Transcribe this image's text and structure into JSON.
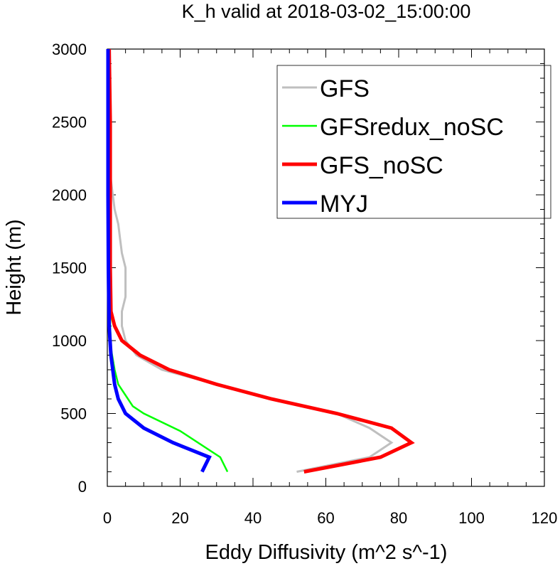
{
  "chart_data": {
    "type": "line",
    "title": "K_h valid at 2018-03-02_15:00:00",
    "xlabel": "Eddy Diffusivity (m^2 s^-1)",
    "ylabel": "Height (m)",
    "xlim": [
      0,
      120
    ],
    "ylim": [
      0,
      3000
    ],
    "xticks": [
      "0",
      "20",
      "40",
      "60",
      "80",
      "100",
      "120"
    ],
    "yticks": [
      "0",
      "500",
      "1000",
      "1500",
      "2000",
      "2500",
      "3000"
    ],
    "grid": false,
    "legend_position": "top-right",
    "series": [
      {
        "name": "GFS",
        "color": "#bfbfbf",
        "points": [
          [
            52,
            100
          ],
          [
            72,
            200
          ],
          [
            78,
            300
          ],
          [
            72,
            400
          ],
          [
            63,
            500
          ],
          [
            45,
            600
          ],
          [
            30,
            700
          ],
          [
            15,
            800
          ],
          [
            8,
            900
          ],
          [
            5,
            1000
          ],
          [
            4,
            1100
          ],
          [
            4,
            1200
          ],
          [
            5,
            1300
          ],
          [
            5,
            1400
          ],
          [
            5,
            1500
          ],
          [
            4,
            1600
          ],
          [
            3.5,
            1700
          ],
          [
            3,
            1800
          ],
          [
            2,
            1900
          ],
          [
            1.5,
            2000
          ],
          [
            1,
            2100
          ],
          [
            0.8,
            2200
          ],
          [
            0.8,
            2300
          ],
          [
            0.6,
            2500
          ],
          [
            0.5,
            2700
          ],
          [
            0.5,
            3000
          ]
        ]
      },
      {
        "name": "GFSredux_noSC",
        "color": "#00ff00",
        "points": [
          [
            33,
            100
          ],
          [
            31,
            200
          ],
          [
            20,
            380
          ],
          [
            10,
            500
          ],
          [
            7,
            550
          ],
          [
            3,
            700
          ],
          [
            2,
            800
          ],
          [
            1,
            950
          ],
          [
            0.8,
            1100
          ],
          [
            0.8,
            1300
          ],
          [
            0.8,
            1600
          ],
          [
            0.6,
            2000
          ],
          [
            0.4,
            2300
          ],
          [
            0.3,
            2500
          ],
          [
            0.3,
            3000
          ]
        ]
      },
      {
        "name": "GFS_noSC",
        "color": "#ff0000",
        "points": [
          [
            54,
            100
          ],
          [
            75,
            200
          ],
          [
            83.5,
            300
          ],
          [
            78,
            400
          ],
          [
            63,
            500
          ],
          [
            45,
            600
          ],
          [
            30,
            700
          ],
          [
            17,
            800
          ],
          [
            9,
            900
          ],
          [
            4,
            1000
          ],
          [
            2,
            1100
          ],
          [
            1,
            1200
          ],
          [
            0.8,
            1500
          ],
          [
            0.8,
            2000
          ],
          [
            0.8,
            2500
          ],
          [
            0.5,
            3000
          ]
        ]
      },
      {
        "name": "MYJ",
        "color": "#0000ff",
        "points": [
          [
            26,
            100
          ],
          [
            28,
            200
          ],
          [
            18,
            300
          ],
          [
            10,
            400
          ],
          [
            5,
            500
          ],
          [
            3,
            600
          ],
          [
            2,
            700
          ],
          [
            1,
            900
          ],
          [
            0.5,
            1100
          ],
          [
            0.3,
            1500
          ],
          [
            0.2,
            2000
          ],
          [
            0.2,
            3000
          ]
        ]
      }
    ]
  }
}
